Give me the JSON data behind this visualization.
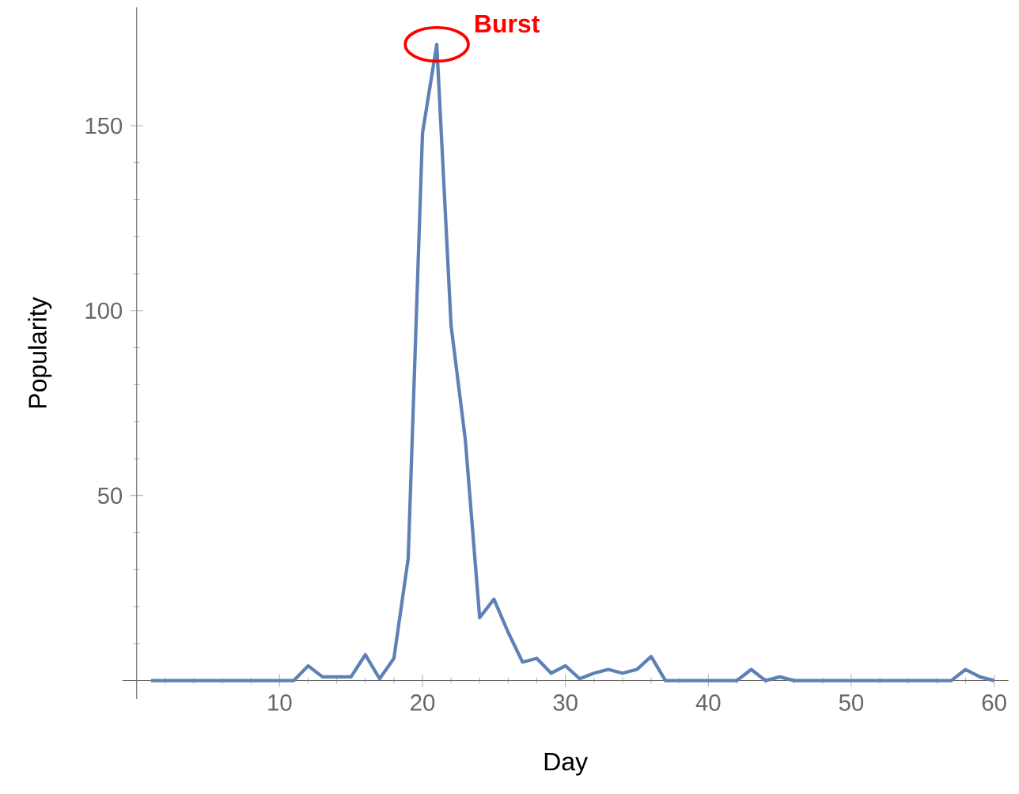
{
  "chart_data": {
    "type": "line",
    "xlabel": "Day",
    "ylabel": "Popularity",
    "x": [
      1,
      2,
      3,
      4,
      5,
      6,
      7,
      8,
      9,
      10,
      11,
      12,
      13,
      14,
      15,
      16,
      17,
      18,
      19,
      20,
      21,
      22,
      23,
      24,
      25,
      26,
      27,
      28,
      29,
      30,
      31,
      32,
      33,
      34,
      35,
      36,
      37,
      38,
      39,
      40,
      41,
      42,
      43,
      44,
      45,
      46,
      47,
      48,
      49,
      50,
      51,
      52,
      53,
      54,
      55,
      56,
      57,
      58,
      59,
      60
    ],
    "series": [
      {
        "color": "#5e81b5",
        "values": [
          0,
          0,
          0,
          0,
          0,
          0,
          0,
          0,
          0,
          0,
          0,
          4,
          1,
          1,
          1,
          7,
          0.5,
          6,
          33,
          148,
          172,
          96,
          65,
          17,
          22,
          13,
          5,
          6,
          2,
          4,
          0.5,
          2,
          3,
          2,
          3,
          6.5,
          0,
          0,
          0,
          0,
          0,
          0,
          3,
          0,
          1,
          0,
          0,
          0,
          0,
          0,
          0,
          0,
          0,
          0,
          0,
          0,
          0,
          3,
          1,
          0
        ]
      }
    ],
    "xlim": [
      -1,
      61
    ],
    "ylim": [
      -5,
      182
    ],
    "xticks": [
      {
        "value": 0,
        "label": null
      },
      10,
      20,
      30,
      40,
      50,
      60
    ],
    "yticks": [
      {
        "value": 0,
        "label": null
      },
      50,
      100,
      150
    ],
    "annotations": [
      {
        "text": "Burst",
        "x": 21,
        "y": 172
      }
    ],
    "grid": false,
    "legend": false,
    "marker": "none",
    "line_style": "solid"
  }
}
